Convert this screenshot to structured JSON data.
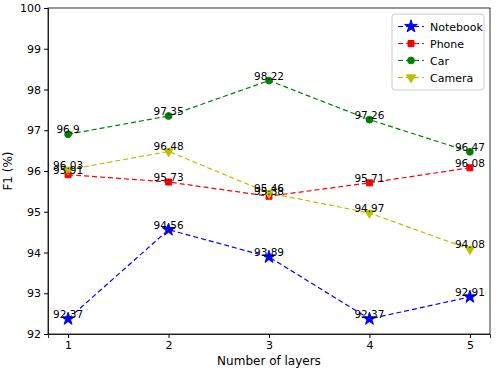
{
  "chart_data": {
    "type": "line",
    "x_label": "Number of layers",
    "y_label": "F1 (%)",
    "x": [
      1,
      2,
      3,
      4,
      5
    ],
    "series": [
      {
        "name": "Notebook",
        "color": "#0000ff",
        "marker": "star",
        "line_style": "dashed",
        "values": [
          92.37,
          94.56,
          93.89,
          92.37,
          92.91
        ]
      },
      {
        "name": "Phone",
        "color": "#ff0000",
        "marker": "square",
        "line_style": "dashed",
        "values": [
          95.91,
          95.73,
          95.38,
          95.71,
          96.08
        ]
      },
      {
        "name": "Car",
        "color": "#008000",
        "marker": "circle",
        "line_style": "dashed",
        "values": [
          96.9,
          97.35,
          98.22,
          97.26,
          96.47
        ]
      },
      {
        "name": "Camera",
        "color": "#bfbf00",
        "marker": "triangle_down",
        "line_style": "dashed",
        "values": [
          96.03,
          96.48,
          95.46,
          94.97,
          94.08
        ]
      }
    ],
    "xlim": [
      0.8,
      5.2
    ],
    "xticks": [
      1,
      2,
      3,
      4,
      5
    ],
    "ylim": [
      92,
      100
    ],
    "yticks": [
      92,
      93,
      94,
      95,
      96,
      97,
      98,
      99,
      100
    ],
    "grid": false,
    "legend": "upper right",
    "data_labels": true
  }
}
